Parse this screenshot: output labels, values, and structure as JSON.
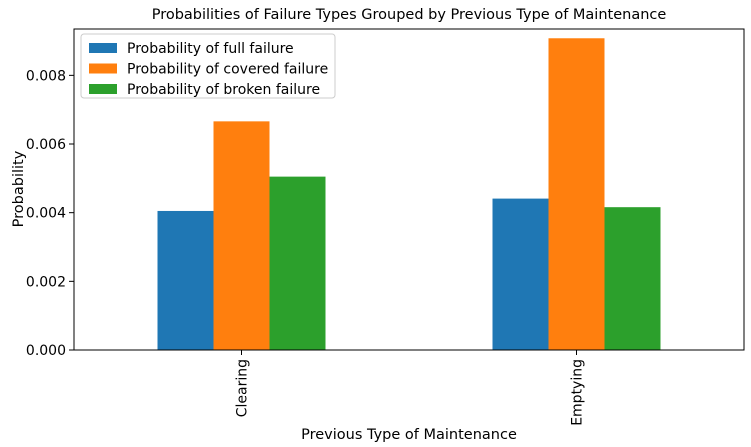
{
  "chart_data": {
    "type": "bar",
    "title": "Probabilities of Failure Types Grouped by Previous Type of Maintenance",
    "xlabel": "Previous Type of Maintenance",
    "ylabel": "Probability",
    "categories": [
      "Clearing",
      "Emptying"
    ],
    "series": [
      {
        "name": "Probability of full failure",
        "color": "#1f77b4",
        "values": [
          0.00405,
          0.00441
        ]
      },
      {
        "name": "Probability of covered failure",
        "color": "#ff7f0e",
        "values": [
          0.00666,
          0.00908
        ]
      },
      {
        "name": "Probability of broken failure",
        "color": "#2ca02c",
        "values": [
          0.00505,
          0.00416
        ]
      }
    ],
    "ylim": [
      0,
      0.00935
    ],
    "yticks": [
      0.0,
      0.002,
      0.004,
      0.006,
      0.008
    ],
    "ytick_labels": [
      "0.000",
      "0.002",
      "0.004",
      "0.006",
      "0.008"
    ],
    "legend": "top-left",
    "grid": false
  }
}
